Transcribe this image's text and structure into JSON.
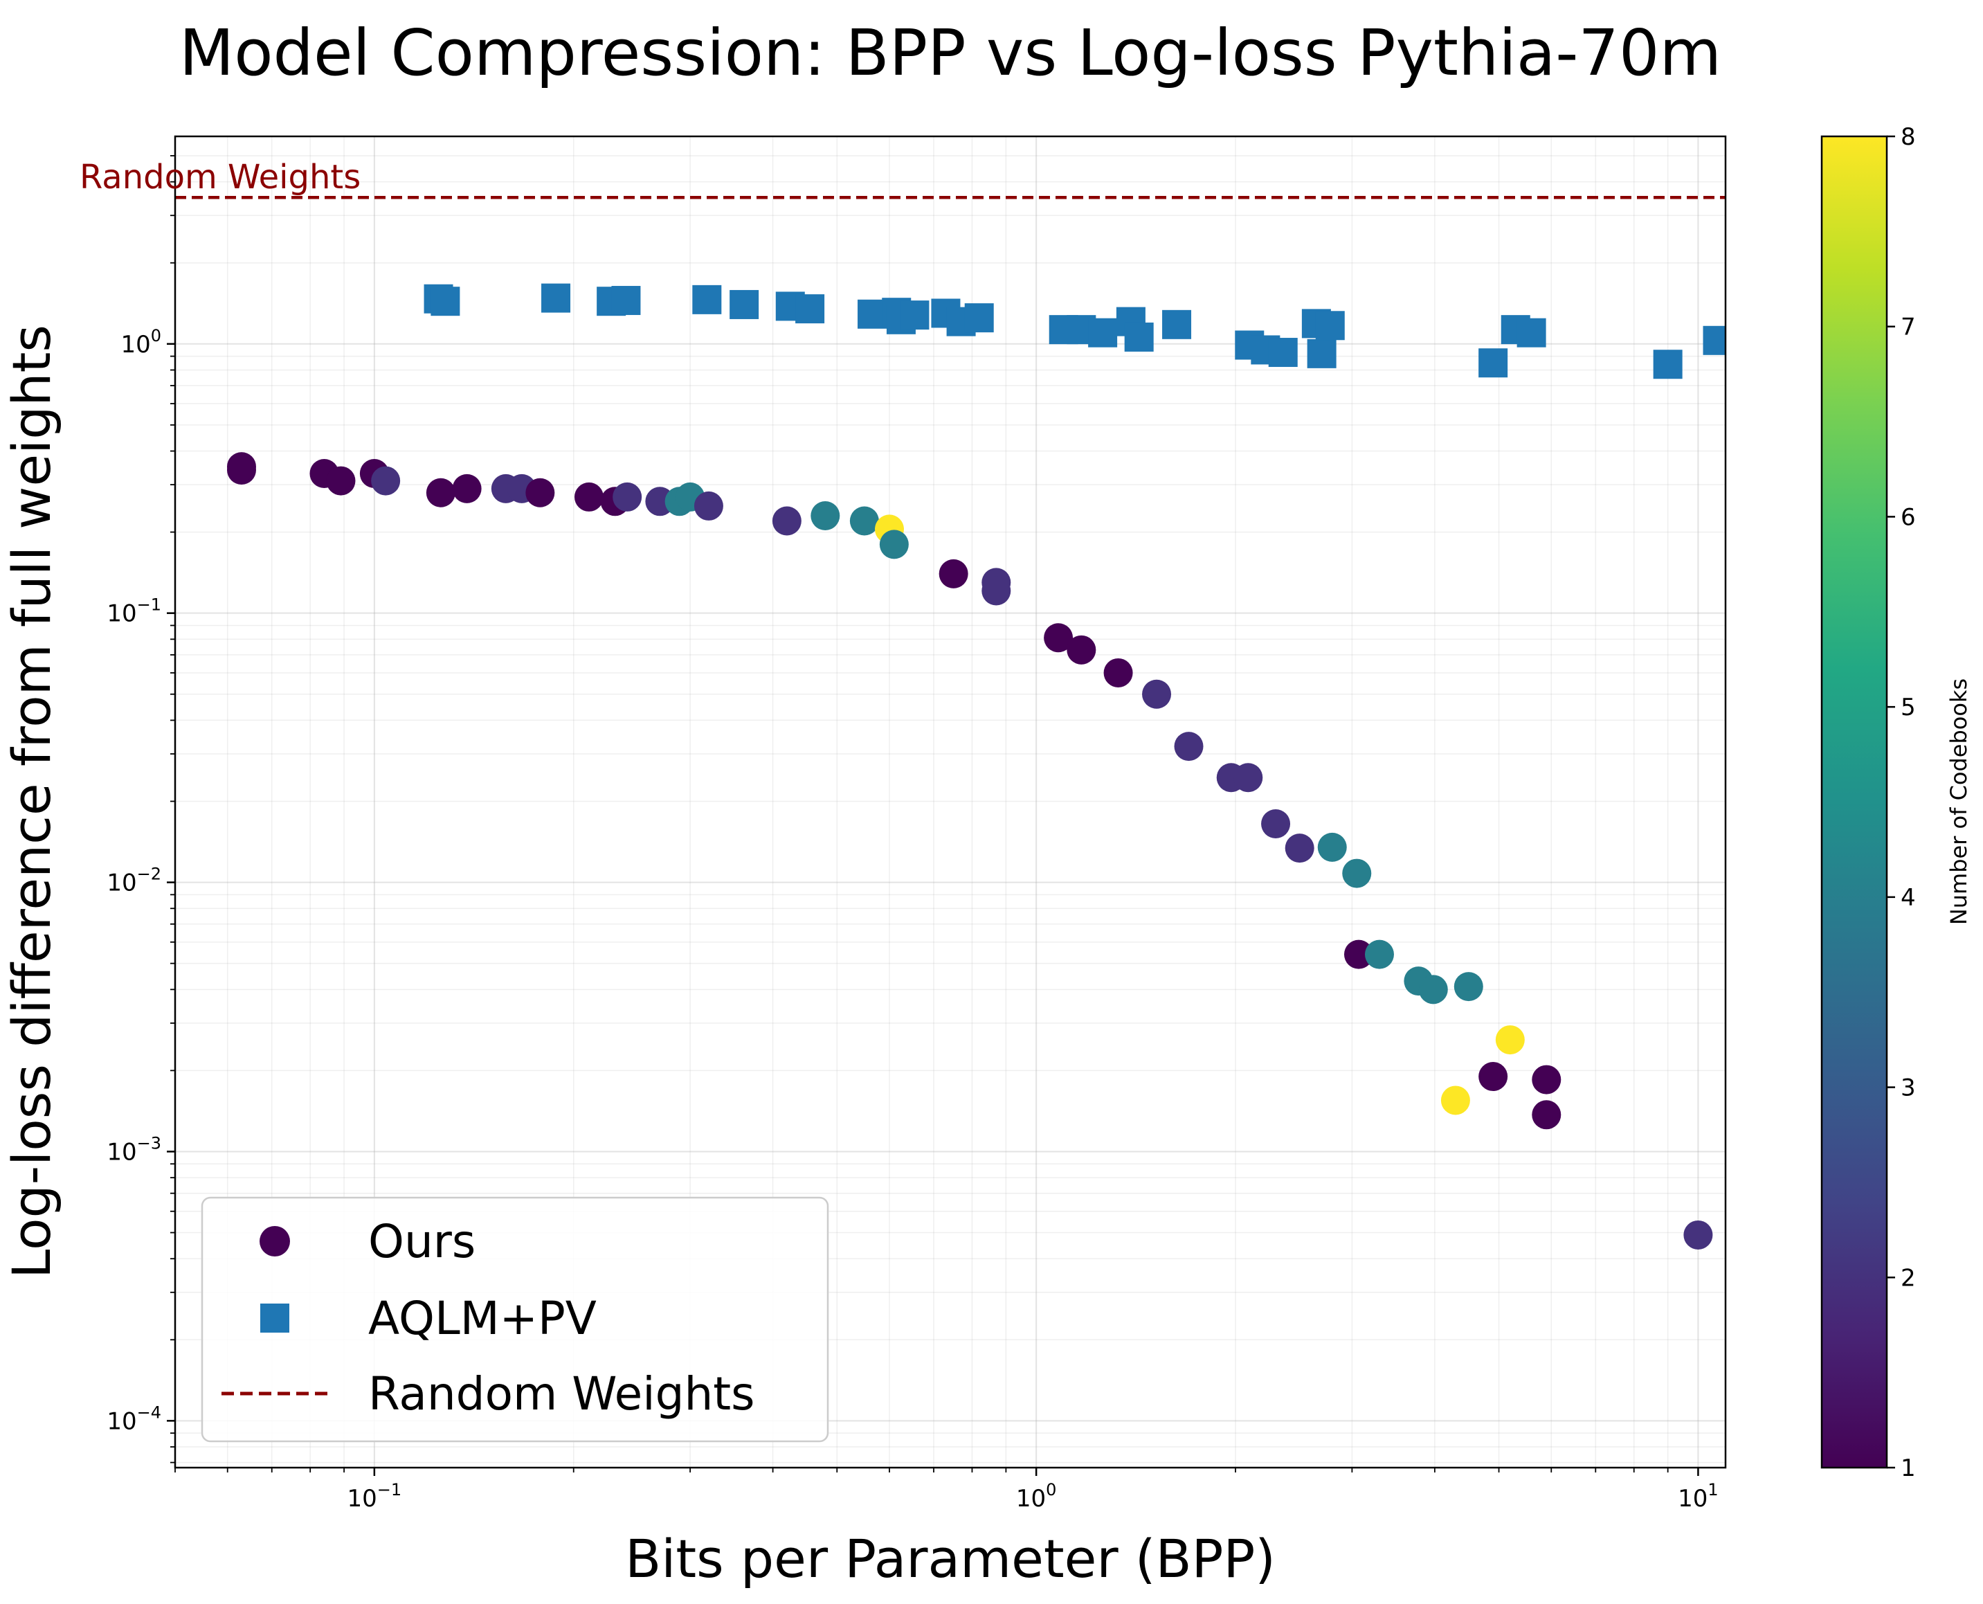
{
  "chart_data": {
    "type": "scatter",
    "title": "Model Compression: BPP vs Log-loss Pythia-70m",
    "xlabel": "Bits per Parameter (BPP)",
    "ylabel": "Log-loss difference from full weights",
    "xscale": "log",
    "yscale": "log",
    "xlim": [
      0.05,
      11
    ],
    "ylim": [
      6.7e-05,
      5.9
    ],
    "grid": true,
    "x_ticks": [
      {
        "value": 0.1,
        "base": "10",
        "exp": "−1"
      },
      {
        "value": 1,
        "base": "10",
        "exp": "0"
      },
      {
        "value": 10,
        "base": "10",
        "exp": "1"
      }
    ],
    "y_ticks": [
      {
        "value": 0.0001,
        "base": "10",
        "exp": "−4"
      },
      {
        "value": 0.001,
        "base": "10",
        "exp": "−3"
      },
      {
        "value": 0.01,
        "base": "10",
        "exp": "−2"
      },
      {
        "value": 0.1,
        "base": "10",
        "exp": "−1"
      },
      {
        "value": 1,
        "base": "10",
        "exp": "0"
      }
    ],
    "reference_line": {
      "label": "Random Weights",
      "y": 3.5,
      "color": "#8b0000",
      "style": "dashed"
    },
    "annotation": {
      "text": "Random Weights",
      "x": 0.05,
      "y": 3.5,
      "color": "#8b0000"
    },
    "colorbar": {
      "label": "Number of Codebooks",
      "colormap": "viridis",
      "range": [
        1,
        8
      ],
      "ticks": [
        "1",
        "2",
        "3",
        "4",
        "5",
        "6",
        "7",
        "8"
      ]
    },
    "legend": {
      "position": "lower-left",
      "entries": [
        {
          "label": "Ours",
          "marker": "circle",
          "color": "#440154"
        },
        {
          "label": "AQLM+PV",
          "marker": "square",
          "color": "#1f77b4"
        },
        {
          "label": "Random Weights",
          "marker": "dashed-line",
          "color": "#8b0000"
        }
      ]
    },
    "series": [
      {
        "name": "Ours",
        "marker": "circle",
        "color_by": "codebooks",
        "points": [
          {
            "x": 0.063,
            "y": 0.34,
            "c": 1
          },
          {
            "x": 0.063,
            "y": 0.35,
            "c": 1
          },
          {
            "x": 0.084,
            "y": 0.33,
            "c": 1
          },
          {
            "x": 0.089,
            "y": 0.31,
            "c": 1
          },
          {
            "x": 0.1,
            "y": 0.33,
            "c": 1
          },
          {
            "x": 0.104,
            "y": 0.31,
            "c": 2
          },
          {
            "x": 0.126,
            "y": 0.28,
            "c": 1
          },
          {
            "x": 0.138,
            "y": 0.29,
            "c": 1
          },
          {
            "x": 0.158,
            "y": 0.29,
            "c": 2
          },
          {
            "x": 0.167,
            "y": 0.29,
            "c": 2
          },
          {
            "x": 0.178,
            "y": 0.28,
            "c": 1
          },
          {
            "x": 0.211,
            "y": 0.27,
            "c": 1
          },
          {
            "x": 0.231,
            "y": 0.26,
            "c": 1
          },
          {
            "x": 0.241,
            "y": 0.27,
            "c": 2
          },
          {
            "x": 0.27,
            "y": 0.26,
            "c": 2
          },
          {
            "x": 0.289,
            "y": 0.26,
            "c": 4
          },
          {
            "x": 0.3,
            "y": 0.27,
            "c": 4
          },
          {
            "x": 0.32,
            "y": 0.25,
            "c": 2
          },
          {
            "x": 0.42,
            "y": 0.22,
            "c": 2
          },
          {
            "x": 0.48,
            "y": 0.23,
            "c": 4
          },
          {
            "x": 0.55,
            "y": 0.22,
            "c": 4
          },
          {
            "x": 0.6,
            "y": 0.205,
            "c": 8
          },
          {
            "x": 0.61,
            "y": 0.18,
            "c": 4
          },
          {
            "x": 0.75,
            "y": 0.14,
            "c": 1
          },
          {
            "x": 0.87,
            "y": 0.13,
            "c": 2
          },
          {
            "x": 0.87,
            "y": 0.121,
            "c": 2
          },
          {
            "x": 1.08,
            "y": 0.081,
            "c": 1
          },
          {
            "x": 1.17,
            "y": 0.073,
            "c": 1
          },
          {
            "x": 1.33,
            "y": 0.06,
            "c": 1
          },
          {
            "x": 1.52,
            "y": 0.05,
            "c": 2
          },
          {
            "x": 1.7,
            "y": 0.032,
            "c": 2
          },
          {
            "x": 1.97,
            "y": 0.0245,
            "c": 2
          },
          {
            "x": 2.09,
            "y": 0.0245,
            "c": 2
          },
          {
            "x": 2.3,
            "y": 0.0165,
            "c": 2
          },
          {
            "x": 2.5,
            "y": 0.0134,
            "c": 2
          },
          {
            "x": 2.8,
            "y": 0.0135,
            "c": 4
          },
          {
            "x": 3.05,
            "y": 0.0108,
            "c": 4
          },
          {
            "x": 3.07,
            "y": 0.0054,
            "c": 1
          },
          {
            "x": 3.3,
            "y": 0.0054,
            "c": 4
          },
          {
            "x": 3.78,
            "y": 0.0043,
            "c": 4
          },
          {
            "x": 3.98,
            "y": 0.004,
            "c": 4
          },
          {
            "x": 4.5,
            "y": 0.0041,
            "c": 4
          },
          {
            "x": 4.3,
            "y": 0.00155,
            "c": 8
          },
          {
            "x": 4.9,
            "y": 0.0019,
            "c": 1
          },
          {
            "x": 5.2,
            "y": 0.0026,
            "c": 8
          },
          {
            "x": 5.9,
            "y": 0.00185,
            "c": 1
          },
          {
            "x": 5.9,
            "y": 0.00137,
            "c": 1
          },
          {
            "x": 10.0,
            "y": 0.00049,
            "c": 2
          }
        ]
      },
      {
        "name": "AQLM+PV",
        "marker": "square",
        "color": "#1f77b4",
        "points": [
          {
            "x": 0.125,
            "y": 1.47
          },
          {
            "x": 0.128,
            "y": 1.44
          },
          {
            "x": 0.188,
            "y": 1.48
          },
          {
            "x": 0.228,
            "y": 1.44
          },
          {
            "x": 0.24,
            "y": 1.45
          },
          {
            "x": 0.318,
            "y": 1.46
          },
          {
            "x": 0.362,
            "y": 1.4
          },
          {
            "x": 0.425,
            "y": 1.38
          },
          {
            "x": 0.455,
            "y": 1.35
          },
          {
            "x": 0.565,
            "y": 1.29
          },
          {
            "x": 0.615,
            "y": 1.31
          },
          {
            "x": 0.625,
            "y": 1.23
          },
          {
            "x": 0.655,
            "y": 1.28
          },
          {
            "x": 0.73,
            "y": 1.3
          },
          {
            "x": 0.77,
            "y": 1.21
          },
          {
            "x": 0.82,
            "y": 1.25
          },
          {
            "x": 1.1,
            "y": 1.13
          },
          {
            "x": 1.17,
            "y": 1.13
          },
          {
            "x": 1.26,
            "y": 1.1
          },
          {
            "x": 1.39,
            "y": 1.21
          },
          {
            "x": 1.43,
            "y": 1.06
          },
          {
            "x": 1.63,
            "y": 1.18
          },
          {
            "x": 2.1,
            "y": 0.99
          },
          {
            "x": 2.22,
            "y": 0.95
          },
          {
            "x": 2.36,
            "y": 0.93
          },
          {
            "x": 2.65,
            "y": 1.19
          },
          {
            "x": 2.7,
            "y": 0.92
          },
          {
            "x": 2.78,
            "y": 1.17
          },
          {
            "x": 4.9,
            "y": 0.85
          },
          {
            "x": 5.3,
            "y": 1.13
          },
          {
            "x": 5.6,
            "y": 1.1
          },
          {
            "x": 9.0,
            "y": 0.84
          },
          {
            "x": 10.7,
            "y": 1.03
          }
        ]
      }
    ]
  }
}
